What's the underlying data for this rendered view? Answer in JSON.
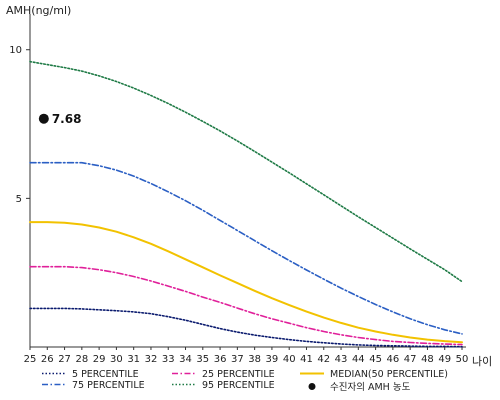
{
  "chart_data": {
    "type": "line",
    "ylabel": "AMH(ng/ml)",
    "xlabel": "나이",
    "x": [
      25,
      26,
      27,
      28,
      29,
      30,
      31,
      32,
      33,
      34,
      35,
      36,
      37,
      38,
      39,
      40,
      41,
      42,
      43,
      44,
      45,
      46,
      47,
      48,
      49,
      50
    ],
    "x_tick_labels": [
      "25",
      "26",
      "27",
      "28",
      "29",
      "30",
      "31",
      "32",
      "33",
      "34",
      "35",
      "36",
      "37",
      "38",
      "39",
      "40",
      "41",
      "42",
      "43",
      "44",
      "45",
      "46",
      "47",
      "48",
      "49",
      "50"
    ],
    "y_ticks": [
      5,
      10
    ],
    "y_tick_labels": [
      "5",
      "10"
    ],
    "ylim": [
      0,
      11
    ],
    "xlim": [
      25,
      50
    ],
    "series": [
      {
        "name": "5 PERCENTILE",
        "color": "#0a1a6e",
        "style": "dotted",
        "values": [
          1.3,
          1.3,
          1.3,
          1.28,
          1.25,
          1.22,
          1.18,
          1.12,
          1.02,
          0.9,
          0.76,
          0.62,
          0.5,
          0.4,
          0.32,
          0.25,
          0.19,
          0.14,
          0.1,
          0.07,
          0.05,
          0.04,
          0.03,
          0.02,
          0.02,
          0.01
        ]
      },
      {
        "name": "25 PERCENTILE",
        "color": "#e0209a",
        "style": "dashdot",
        "values": [
          2.7,
          2.7,
          2.7,
          2.67,
          2.6,
          2.5,
          2.37,
          2.22,
          2.05,
          1.87,
          1.68,
          1.5,
          1.31,
          1.12,
          0.95,
          0.8,
          0.65,
          0.52,
          0.41,
          0.32,
          0.25,
          0.19,
          0.15,
          0.12,
          0.1,
          0.08
        ]
      },
      {
        "name": "MEDIAN(50 PERCENTILE)",
        "color": "#f2c200",
        "style": "solid",
        "values": [
          4.2,
          4.2,
          4.18,
          4.12,
          4.02,
          3.88,
          3.69,
          3.47,
          3.22,
          2.95,
          2.68,
          2.41,
          2.15,
          1.89,
          1.64,
          1.41,
          1.19,
          0.99,
          0.81,
          0.65,
          0.52,
          0.41,
          0.32,
          0.25,
          0.2,
          0.16
        ]
      },
      {
        "name": "75 PERCENTILE",
        "color": "#2b5fc4",
        "style": "dashdot",
        "values": [
          6.2,
          6.2,
          6.2,
          6.2,
          6.1,
          5.95,
          5.75,
          5.5,
          5.22,
          4.92,
          4.6,
          4.26,
          3.92,
          3.58,
          3.24,
          2.91,
          2.59,
          2.28,
          1.98,
          1.7,
          1.43,
          1.18,
          0.95,
          0.75,
          0.58,
          0.44
        ]
      },
      {
        "name": "95 PERCENTILE",
        "color": "#1e7a45",
        "style": "dotted",
        "values": [
          9.6,
          9.5,
          9.4,
          9.28,
          9.12,
          8.93,
          8.71,
          8.46,
          8.19,
          7.9,
          7.59,
          7.27,
          6.93,
          6.58,
          6.22,
          5.86,
          5.49,
          5.12,
          4.75,
          4.38,
          4.02,
          3.66,
          3.3,
          2.95,
          2.6,
          2.2
        ]
      }
    ],
    "points": [
      {
        "name": "수진자의 AMH 농도",
        "x": 25.8,
        "y": 7.68,
        "label": "7.68",
        "color": "#111111"
      }
    ],
    "grid": false,
    "legend_position": "bottom"
  }
}
